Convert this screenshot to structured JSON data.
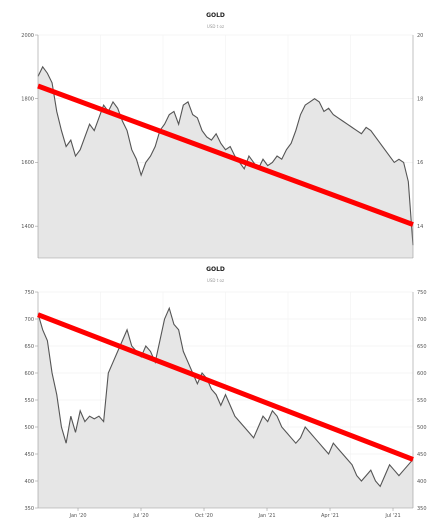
{
  "chart_data": [
    {
      "type": "area",
      "title": "GOLD",
      "subtitle": "USD t oz",
      "ylim": [
        1300,
        2000
      ],
      "y_ticks": [
        2000,
        1800,
        1600,
        1400
      ],
      "y_ticks_right": [
        20,
        18,
        16,
        14
      ],
      "grid": true,
      "series_color": "#555555",
      "fill_color": "#e6e6e6",
      "trend_color": "#ff0000",
      "x": [
        0,
        1,
        2,
        3,
        4,
        5,
        6,
        7,
        8,
        9,
        10,
        11,
        12,
        13,
        14,
        15,
        16,
        17,
        18,
        19,
        20,
        21,
        22,
        23,
        24,
        25,
        26,
        27,
        28,
        29,
        30,
        31,
        32,
        33,
        34,
        35,
        36,
        37,
        38,
        39,
        40,
        41,
        42,
        43,
        44,
        45,
        46,
        47,
        48,
        49,
        50,
        51,
        52,
        53,
        54,
        55,
        56,
        57,
        58,
        59,
        60,
        61,
        62,
        63,
        64,
        65,
        66,
        67,
        68,
        69,
        70,
        71,
        72,
        73,
        74,
        75,
        76,
        77,
        78,
        79,
        80
      ],
      "values": [
        1870,
        1900,
        1880,
        1850,
        1760,
        1700,
        1650,
        1670,
        1620,
        1640,
        1680,
        1720,
        1700,
        1740,
        1780,
        1760,
        1790,
        1770,
        1730,
        1700,
        1640,
        1610,
        1560,
        1600,
        1620,
        1650,
        1700,
        1720,
        1750,
        1760,
        1720,
        1780,
        1790,
        1750,
        1740,
        1700,
        1680,
        1670,
        1690,
        1660,
        1640,
        1650,
        1620,
        1600,
        1580,
        1620,
        1600,
        1580,
        1610,
        1590,
        1600,
        1620,
        1610,
        1640,
        1660,
        1700,
        1750,
        1780,
        1790,
        1800,
        1790,
        1760,
        1770,
        1750,
        1740,
        1730,
        1720,
        1710,
        1700,
        1690,
        1710,
        1700,
        1680,
        1660,
        1640,
        1620,
        1600,
        1610,
        1600,
        1540,
        1340
      ],
      "trend": {
        "x": [
          0,
          80
        ],
        "y": [
          1840,
          1405
        ]
      }
    },
    {
      "type": "area",
      "title": "GOLD",
      "subtitle": "USD t oz",
      "ylim": [
        350,
        750
      ],
      "y_ticks": [
        750,
        700,
        650,
        600,
        550,
        500,
        450,
        400,
        350
      ],
      "y_ticks_right": [
        750,
        700,
        650,
        600,
        550,
        500,
        450,
        400,
        350
      ],
      "x_ticks": [
        "Jan '20",
        "Jul '20",
        "Oct '20",
        "Jan '21",
        "Apr '21",
        "Jul '21"
      ],
      "grid": true,
      "series_color": "#555555",
      "fill_color": "#e6e6e6",
      "trend_color": "#ff0000",
      "x": [
        0,
        1,
        2,
        3,
        4,
        5,
        6,
        7,
        8,
        9,
        10,
        11,
        12,
        13,
        14,
        15,
        16,
        17,
        18,
        19,
        20,
        21,
        22,
        23,
        24,
        25,
        26,
        27,
        28,
        29,
        30,
        31,
        32,
        33,
        34,
        35,
        36,
        37,
        38,
        39,
        40,
        41,
        42,
        43,
        44,
        45,
        46,
        47,
        48,
        49,
        50,
        51,
        52,
        53,
        54,
        55,
        56,
        57,
        58,
        59,
        60,
        61,
        62,
        63,
        64,
        65,
        66,
        67,
        68,
        69,
        70,
        71,
        72,
        73,
        74,
        75,
        76,
        77,
        78,
        79,
        80
      ],
      "values": [
        710,
        680,
        660,
        600,
        560,
        500,
        470,
        520,
        490,
        530,
        510,
        520,
        515,
        520,
        510,
        600,
        620,
        640,
        660,
        680,
        650,
        640,
        630,
        650,
        640,
        620,
        660,
        700,
        720,
        690,
        680,
        640,
        620,
        600,
        580,
        600,
        590,
        570,
        560,
        540,
        560,
        540,
        520,
        510,
        500,
        490,
        480,
        500,
        520,
        510,
        530,
        520,
        500,
        490,
        480,
        470,
        480,
        500,
        490,
        480,
        470,
        460,
        450,
        470,
        460,
        450,
        440,
        430,
        410,
        400,
        410,
        420,
        400,
        390,
        410,
        430,
        420,
        410,
        420,
        430,
        440
      ],
      "trend": {
        "x": [
          0,
          80
        ],
        "y": [
          708,
          440
        ]
      }
    }
  ]
}
